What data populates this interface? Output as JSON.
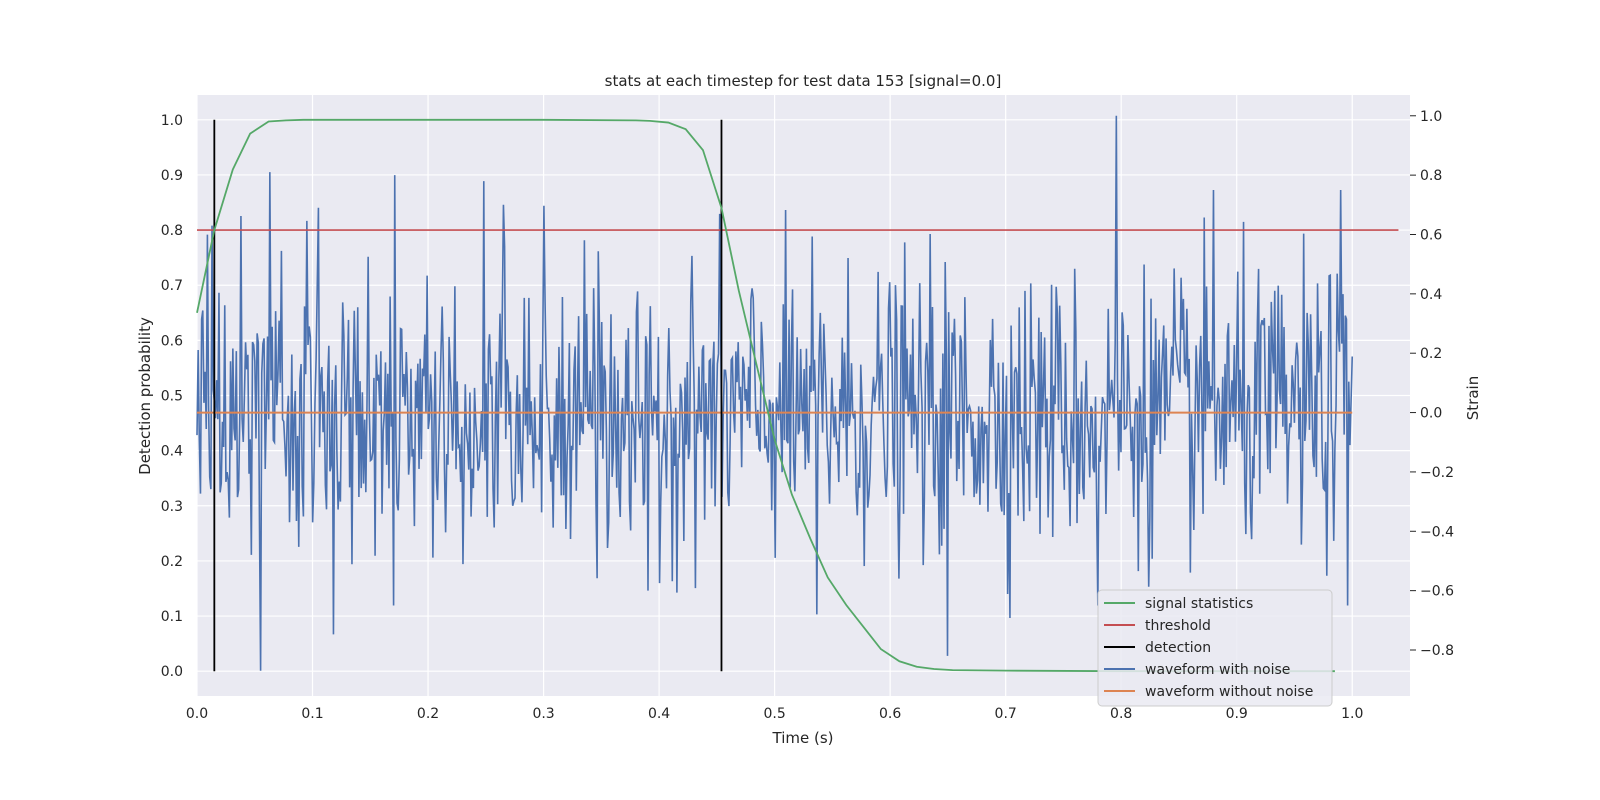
{
  "chart_data": {
    "type": "line",
    "title": "stats at each timestep for test data 153 [signal=0.0]",
    "xlabel": "Time (s)",
    "ylabel": "Detection probability",
    "y2label": "Strain",
    "xlim": [
      0.0,
      1.05
    ],
    "ylim": [
      -0.045,
      1.045
    ],
    "y2lim": [
      -0.955,
      1.07
    ],
    "xticks": [
      "0.0",
      "0.1",
      "0.2",
      "0.3",
      "0.4",
      "0.5",
      "0.6",
      "0.7",
      "0.8",
      "0.9",
      "1.0"
    ],
    "yticks": [
      "0.0",
      "0.1",
      "0.2",
      "0.3",
      "0.4",
      "0.5",
      "0.6",
      "0.7",
      "0.8",
      "0.9",
      "1.0"
    ],
    "y2ticks": [
      "−0.8",
      "−0.6",
      "−0.4",
      "−0.2",
      "0.0",
      "0.2",
      "0.4",
      "0.6",
      "0.8",
      "1.0"
    ],
    "grid": true,
    "legend_position": "bottom-right",
    "legend": [
      "signal statistics",
      "threshold",
      "detection",
      "waveform with noise",
      "waveform without noise"
    ],
    "colors": {
      "signal_statistics": "#55a868",
      "threshold": "#c44e52",
      "detection": "#000000",
      "waveform_noise": "#4c72b0",
      "waveform_clean": "#dd8452",
      "plot_bg": "#eaeaf2",
      "grid": "#ffffff"
    },
    "signal_statistics": {
      "x": [
        0.0,
        0.015,
        0.031,
        0.046,
        0.062,
        0.077,
        0.092,
        0.108,
        0.2,
        0.3,
        0.38,
        0.392,
        0.408,
        0.423,
        0.438,
        0.454,
        0.469,
        0.485,
        0.5,
        0.515,
        0.531,
        0.546,
        0.562,
        0.577,
        0.592,
        0.608,
        0.623,
        0.638,
        0.654,
        0.7,
        0.8,
        0.9,
        0.985
      ],
      "y": [
        0.65,
        0.8,
        0.91,
        0.975,
        0.997,
        0.999,
        1.0,
        1.0,
        1.0,
        1.0,
        0.999,
        0.998,
        0.995,
        0.983,
        0.945,
        0.84,
        0.69,
        0.55,
        0.42,
        0.32,
        0.24,
        0.17,
        0.12,
        0.08,
        0.04,
        0.018,
        0.008,
        0.004,
        0.002,
        0.001,
        0.0,
        0.0,
        0.0
      ]
    },
    "threshold": {
      "y": 0.8,
      "x_range": [
        0.0,
        1.04
      ]
    },
    "detections": {
      "x": [
        0.015,
        0.454
      ],
      "y_range": [
        0.0,
        1.0
      ]
    },
    "waveform_without_noise": {
      "y": 0.0,
      "x_range": [
        0.0,
        1.0
      ]
    },
    "waveform_with_noise": {
      "samples": 1000,
      "x_range": [
        0.0,
        1.0
      ],
      "std": 0.23,
      "peaks": [
        {
          "x": 0.013,
          "y": 0.63
        },
        {
          "x": 0.055,
          "y": -0.87
        },
        {
          "x": 0.063,
          "y": 0.81
        },
        {
          "x": 0.105,
          "y": 0.69
        },
        {
          "x": 0.17,
          "y": -0.65
        },
        {
          "x": 0.171,
          "y": 0.8
        },
        {
          "x": 0.248,
          "y": 0.78
        },
        {
          "x": 0.265,
          "y": 0.7
        },
        {
          "x": 0.39,
          "y": -0.6
        },
        {
          "x": 0.537,
          "y": -0.68
        },
        {
          "x": 0.65,
          "y": -0.82
        },
        {
          "x": 0.796,
          "y": 1.0
        },
        {
          "x": 0.78,
          "y": -0.65
        },
        {
          "x": 0.88,
          "y": 0.75
        },
        {
          "x": 0.99,
          "y": 0.75
        },
        {
          "x": 0.996,
          "y": -0.65
        }
      ]
    }
  }
}
